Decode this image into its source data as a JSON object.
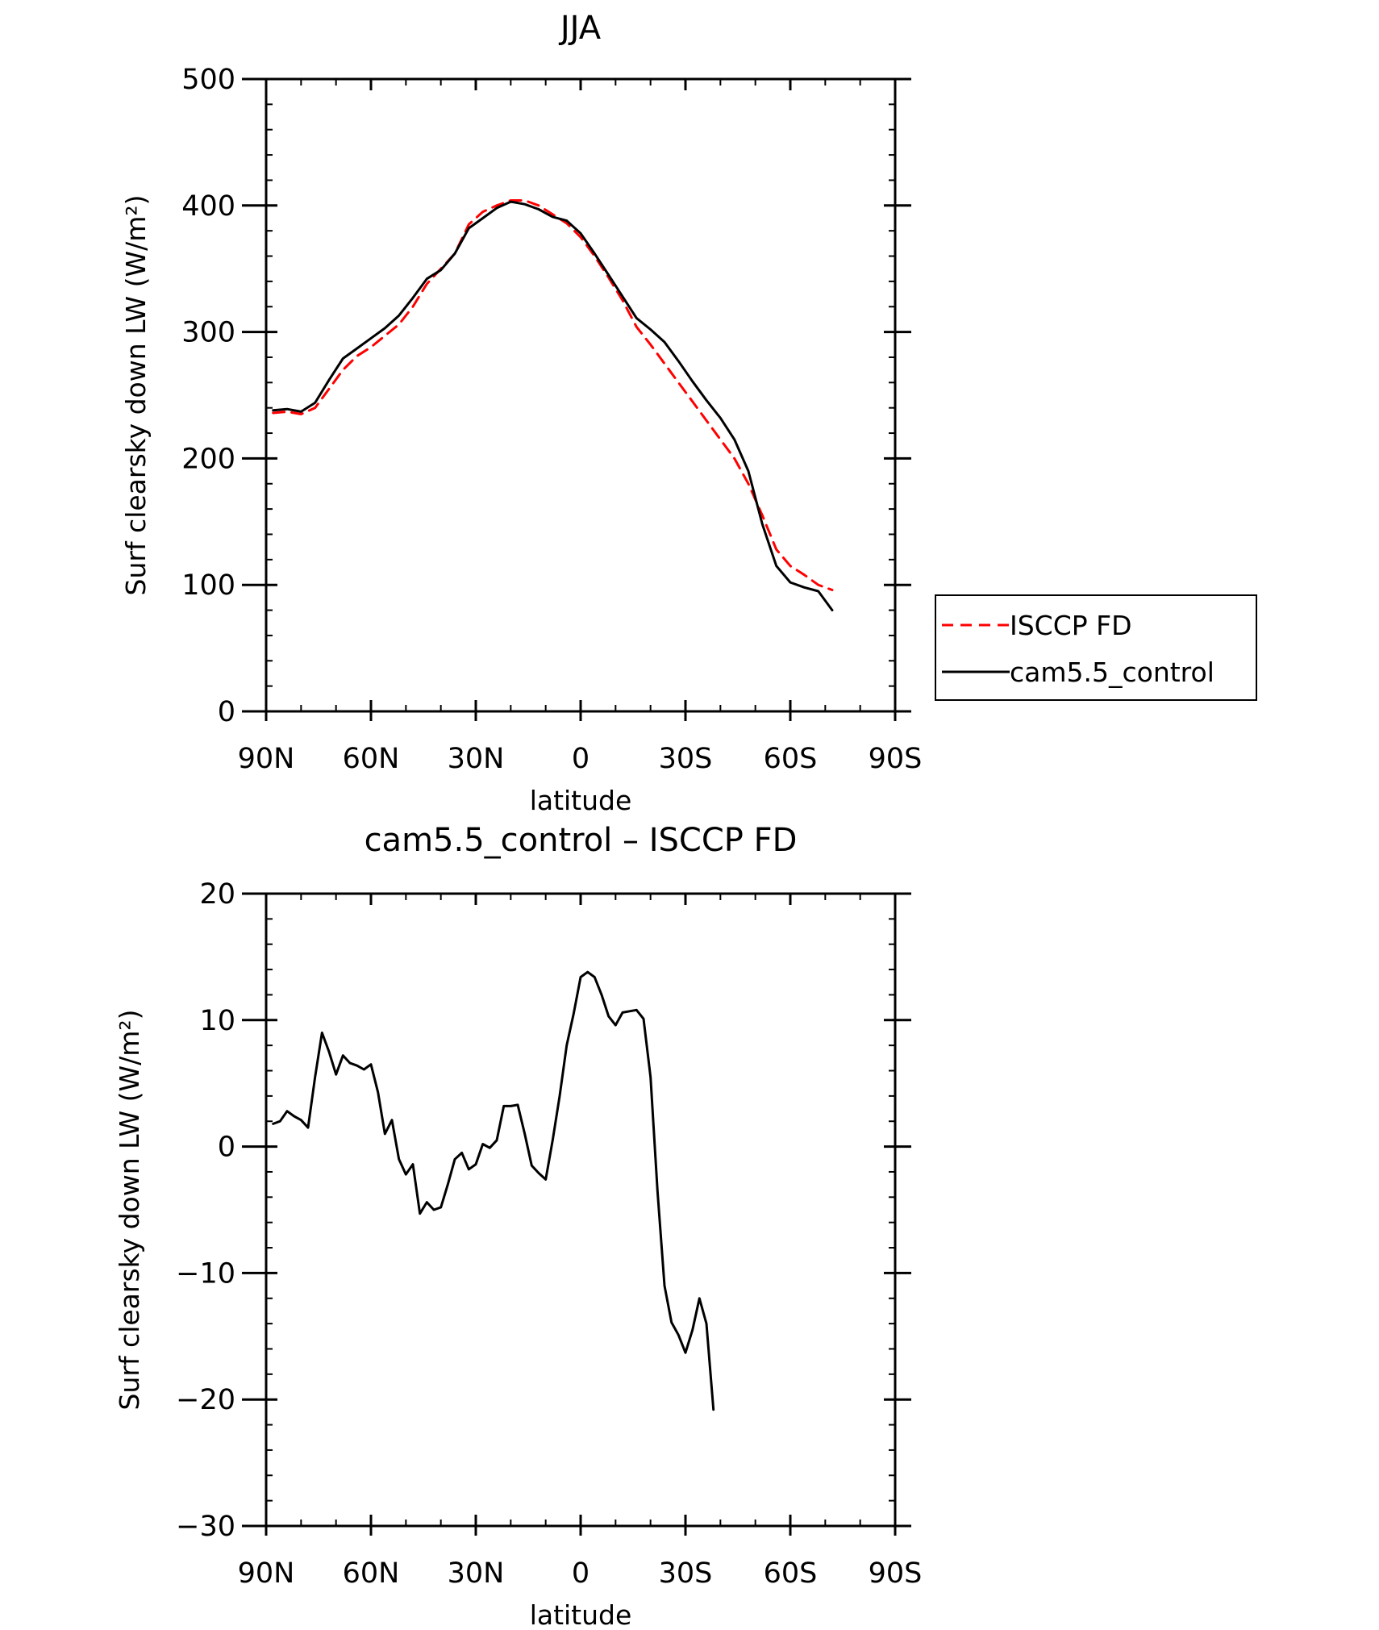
{
  "chart_data": [
    {
      "type": "line",
      "title": "JJA",
      "xlabel": "latitude",
      "ylabel": "Surf clearsky down LW (W/m²)",
      "xlim": [
        90,
        -90
      ],
      "ylim": [
        0,
        500
      ],
      "xticks": [
        90,
        60,
        30,
        0,
        -30,
        -60,
        -90
      ],
      "xtick_labels": [
        "90N",
        "60N",
        "30N",
        "0",
        "30S",
        "60S",
        "90S"
      ],
      "yticks": [
        0,
        100,
        200,
        300,
        400,
        500
      ],
      "ytick_labels": [
        "0",
        "100",
        "200",
        "300",
        "400",
        "500"
      ],
      "legend": {
        "position": "right",
        "entries": [
          "ISCCP FD",
          "cam5.5_control"
        ]
      },
      "series": [
        {
          "name": "ISCCP FD",
          "color": "#ff0000",
          "dash": "dashed",
          "x": [
            88,
            84,
            80,
            76,
            72,
            68,
            64,
            60,
            56,
            52,
            48,
            44,
            40,
            36,
            32,
            28,
            24,
            20,
            16,
            12,
            8,
            4,
            0,
            -4,
            -8,
            -12,
            -16,
            -20,
            -24,
            -28,
            -32,
            -36,
            -40,
            -44,
            -48,
            -52,
            -56,
            -60,
            -64,
            -68,
            -72,
            -76,
            -80,
            -84,
            -88
          ],
          "values": [
            236,
            237,
            235,
            240,
            255,
            270,
            281,
            288,
            297,
            306,
            320,
            338,
            350,
            362,
            385,
            395,
            400,
            404,
            404,
            400,
            393,
            386,
            375,
            360,
            343,
            325,
            304,
            290,
            275,
            260,
            245,
            230,
            215,
            200,
            180,
            155,
            128,
            115,
            108,
            100,
            96,
            null,
            null,
            null,
            null
          ]
        },
        {
          "name": "cam5.5_control",
          "color": "#000000",
          "dash": "solid",
          "x": [
            88,
            84,
            80,
            76,
            72,
            68,
            64,
            60,
            56,
            52,
            48,
            44,
            40,
            36,
            32,
            28,
            24,
            20,
            16,
            12,
            8,
            4,
            0,
            -4,
            -8,
            -12,
            -16,
            -20,
            -24,
            -28,
            -32,
            -36,
            -40,
            -44,
            -48,
            -52,
            -56,
            -60,
            -64,
            -68,
            -72,
            -76,
            -80,
            -84,
            -88
          ],
          "values": [
            238,
            239,
            237,
            244,
            262,
            279,
            287,
            295,
            303,
            313,
            327,
            342,
            349,
            362,
            382,
            390,
            398,
            403,
            401,
            397,
            391,
            388,
            378,
            362,
            345,
            328,
            311,
            302,
            292,
            277,
            261,
            246,
            232,
            215,
            190,
            148,
            115,
            102,
            98,
            95,
            80,
            null,
            null,
            null,
            null
          ]
        }
      ]
    },
    {
      "type": "line",
      "title": "cam5.5_control – ISCCP FD",
      "xlabel": "latitude",
      "ylabel": "Surf clearsky down LW (W/m²)",
      "xlim": [
        90,
        -90
      ],
      "ylim": [
        -30,
        20
      ],
      "xticks": [
        90,
        60,
        30,
        0,
        -30,
        -60,
        -90
      ],
      "xtick_labels": [
        "90N",
        "60N",
        "30N",
        "0",
        "30S",
        "60S",
        "90S"
      ],
      "yticks": [
        -30,
        -20,
        -10,
        0,
        10,
        20
      ],
      "ytick_labels": [
        "−30",
        "−20",
        "−10",
        "0",
        "10",
        "20"
      ],
      "series": [
        {
          "name": "cam5.5_control – ISCCP FD",
          "color": "#000000",
          "dash": "solid",
          "x": [
            88,
            86,
            84,
            82,
            80,
            78,
            76,
            74,
            72,
            70,
            68,
            66,
            64,
            62,
            60,
            58,
            56,
            54,
            52,
            50,
            48,
            46,
            44,
            42,
            40,
            38,
            36,
            34,
            32,
            30,
            28,
            26,
            24,
            22,
            20,
            18,
            16,
            14,
            12,
            10,
            8,
            6,
            4,
            2,
            0,
            -2,
            -4,
            -6,
            -8,
            -10,
            -12,
            -14,
            -16,
            -18,
            -20,
            -22,
            -24,
            -26,
            -28,
            -30,
            -32,
            -34,
            -36,
            -38,
            -40,
            -42,
            -44,
            -46,
            -48,
            -50,
            -52,
            -54,
            -56,
            -58,
            -60,
            -62,
            -64,
            -66,
            -68,
            -70,
            -72,
            -74,
            -76,
            -78,
            -80,
            -82,
            -84,
            -86,
            -88
          ],
          "values": [
            1.8,
            2.0,
            2.8,
            2.4,
            2.1,
            1.5,
            5.5,
            9.0,
            7.5,
            5.7,
            7.2,
            6.6,
            6.4,
            6.1,
            6.5,
            4.3,
            1.0,
            2.1,
            -1.0,
            -2.2,
            -1.4,
            -5.3,
            -4.4,
            -5.0,
            -4.8,
            -3.0,
            -1.0,
            -0.5,
            -1.8,
            -1.4,
            0.2,
            -0.1,
            0.5,
            3.2,
            3.2,
            3.3,
            1.0,
            -1.5,
            -2.1,
            -2.6,
            0.5,
            4.0,
            8.0,
            10.5,
            13.4,
            13.8,
            13.4,
            12.0,
            10.3,
            9.6,
            10.6,
            10.7,
            10.8,
            10.1,
            5.5,
            -3.5,
            -11.0,
            -13.9,
            -14.9,
            -16.3,
            -14.5,
            -12.0,
            -14.0,
            -20.8,
            null,
            null,
            null,
            null,
            null,
            null,
            null,
            null,
            null,
            null,
            null,
            null,
            null,
            null,
            null,
            null,
            null,
            null,
            null,
            null,
            null,
            null,
            null,
            null,
            null
          ]
        }
      ]
    }
  ]
}
